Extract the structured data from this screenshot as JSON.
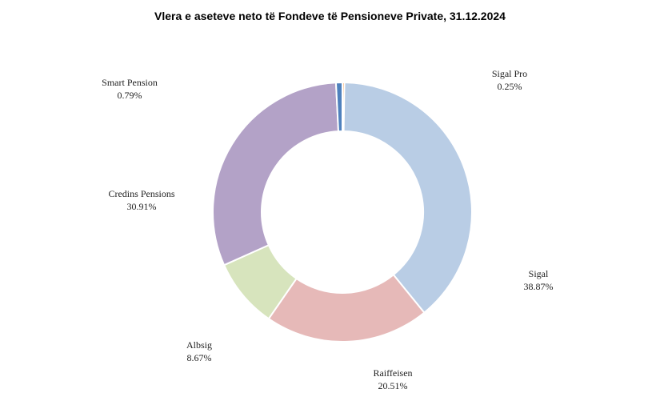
{
  "chart_data": {
    "type": "pie",
    "variant": "donut",
    "title": "Vlera e aseteve neto të Fondeve të Pensioneve Private, 31.12.2024",
    "slices": [
      {
        "name": "Sigal Pro",
        "value": 0.25,
        "label": "0.25%",
        "color": "#F79646"
      },
      {
        "name": "Sigal",
        "value": 38.87,
        "label": "38.87%",
        "color": "#B9CDE5"
      },
      {
        "name": "Raiffeisen",
        "value": 20.51,
        "label": "20.51%",
        "color": "#E6B9B8"
      },
      {
        "name": "Albsig",
        "value": 8.67,
        "label": "8.67%",
        "color": "#D7E4BD"
      },
      {
        "name": "Credins Pensions",
        "value": 30.91,
        "label": "30.91%",
        "color": "#B3A2C7"
      },
      {
        "name": "Smart Pension",
        "value": 0.79,
        "label": "0.79%",
        "color": "#4F81BD"
      }
    ],
    "start_angle_deg": 0,
    "direction": "clockwise",
    "legend": "none",
    "data_labels": "outside"
  }
}
